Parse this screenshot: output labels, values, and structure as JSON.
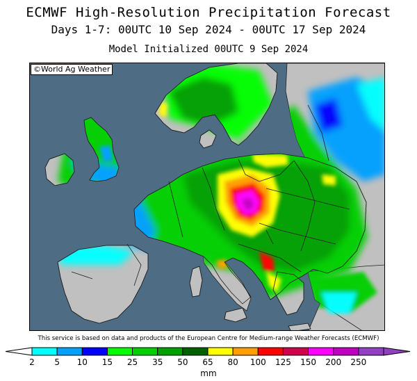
{
  "header": {
    "title": "ECMWF High-Resolution Precipitation Forecast",
    "period": "Days 1-7: 00UTC 10 Sep 2024 - 00UTC 17 Sep 2024",
    "initialized": "Model Initialized 00UTC 9 Sep 2024"
  },
  "map": {
    "copyright": "©World Ag Weather",
    "ocean_color": "#4e6c83",
    "land_no_data_color": "#c0c0c0"
  },
  "footer": {
    "disclaimer": "This service is based on data and products of the European Centre for Medium-range Weather Forecasts (ECMWF)",
    "unit": "mm"
  },
  "legend": {
    "colors": [
      "#00ffff",
      "#00a0ff",
      "#0000ff",
      "#00ff00",
      "#00d000",
      "#00a000",
      "#006000",
      "#ffff00",
      "#ffa000",
      "#ff0000",
      "#d0004a",
      "#ff00ff",
      "#c000c0",
      "#9040c0"
    ],
    "labels": [
      "2",
      "5",
      "10",
      "15",
      "25",
      "35",
      "50",
      "65",
      "80",
      "100",
      "125",
      "150",
      "200",
      "250"
    ]
  }
}
